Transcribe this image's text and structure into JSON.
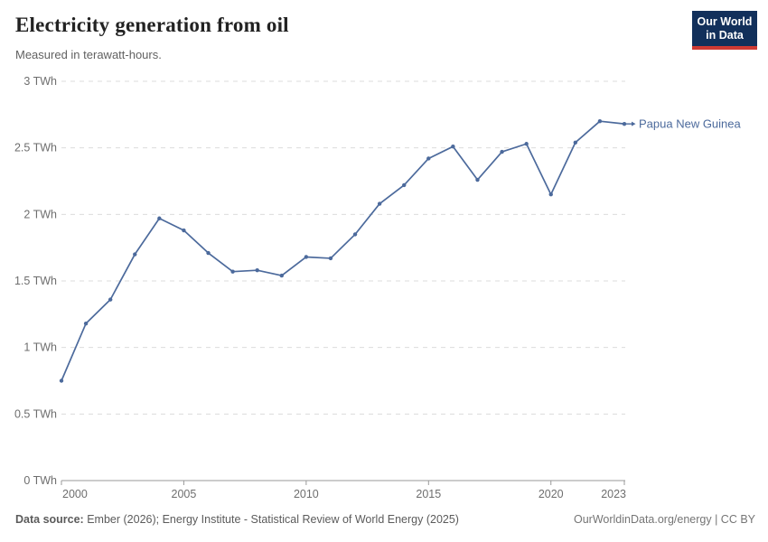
{
  "header": {
    "title": "Electricity generation from oil",
    "subtitle": "Measured in terawatt-hours.",
    "logo": {
      "line1": "Our World",
      "line2": "in Data"
    }
  },
  "chart_data": {
    "type": "line",
    "title": "Electricity generation from oil",
    "unit": "TWh",
    "xlim": [
      2000,
      2023
    ],
    "ylim": [
      0,
      3
    ],
    "grid": "horizontal-dashed",
    "legend_position": "end-of-line-label",
    "x_ticks": [
      2000,
      2005,
      2010,
      2015,
      2020,
      2023
    ],
    "y_ticks": [
      0,
      0.5,
      1,
      1.5,
      2,
      2.5,
      3
    ],
    "y_tick_labels": [
      "0 TWh",
      "0.5 TWh",
      "1 TWh",
      "1.5 TWh",
      "2 TWh",
      "2.5 TWh",
      "3 TWh"
    ],
    "x": [
      2000,
      2001,
      2002,
      2003,
      2004,
      2005,
      2006,
      2007,
      2008,
      2009,
      2010,
      2011,
      2012,
      2013,
      2014,
      2015,
      2016,
      2017,
      2018,
      2019,
      2020,
      2021,
      2022,
      2023
    ],
    "series": [
      {
        "name": "Papua New Guinea",
        "color": "#4c6a9c",
        "values": [
          0.75,
          1.18,
          1.36,
          1.7,
          1.97,
          1.88,
          1.71,
          1.57,
          1.58,
          1.54,
          1.68,
          1.67,
          1.85,
          2.08,
          2.22,
          2.42,
          2.51,
          2.26,
          2.47,
          2.53,
          2.15,
          2.54,
          2.7,
          2.68
        ]
      }
    ]
  },
  "footer": {
    "source_label": "Data source:",
    "source_text": " Ember (2026); Energy Institute - Statistical Review of World Energy (2025)",
    "link_text": "OurWorldinData.org/energy | CC BY"
  },
  "colors": {
    "line": "#4c6a9c",
    "grid": "#dcdcdc",
    "axis": "#999999",
    "tick_label": "#6e6e6e",
    "title": "#222222",
    "subtitle": "#616161",
    "logo_bg": "#12305b",
    "logo_accent": "#cf3a33",
    "footer_text": "#5b5b5b"
  }
}
